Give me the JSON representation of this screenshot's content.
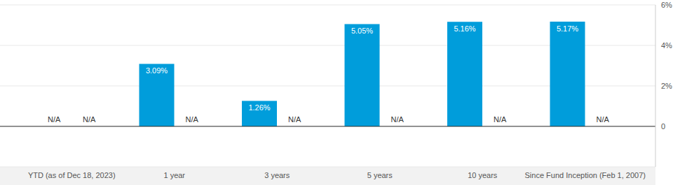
{
  "chart_data": {
    "type": "bar",
    "categories": [
      "YTD (as of Dec 18, 2023)",
      "1 year",
      "3 years",
      "5 years",
      "10 years",
      "Since Fund Inception (Feb 1, 2007)"
    ],
    "series": [
      {
        "color": "#009ddb",
        "values": [
          null,
          3.09,
          1.26,
          5.05,
          5.16,
          5.17
        ],
        "value_labels": [
          "N/A",
          "3.09%",
          "1.26%",
          "5.05%",
          "5.16%",
          "5.17%"
        ]
      },
      {
        "values": [
          null,
          null,
          null,
          null,
          null,
          null
        ],
        "value_labels": [
          "N/A",
          "N/A",
          "N/A",
          "N/A",
          "N/A",
          "N/A"
        ]
      }
    ],
    "ylim": [
      -2,
      6
    ],
    "yticks": [
      0,
      {
        "value": 2,
        "label": "2%"
      },
      {
        "value": 4,
        "label": "4%"
      },
      {
        "value": 6,
        "label": "6%"
      }
    ],
    "grid": true,
    "data_labels": true
  }
}
